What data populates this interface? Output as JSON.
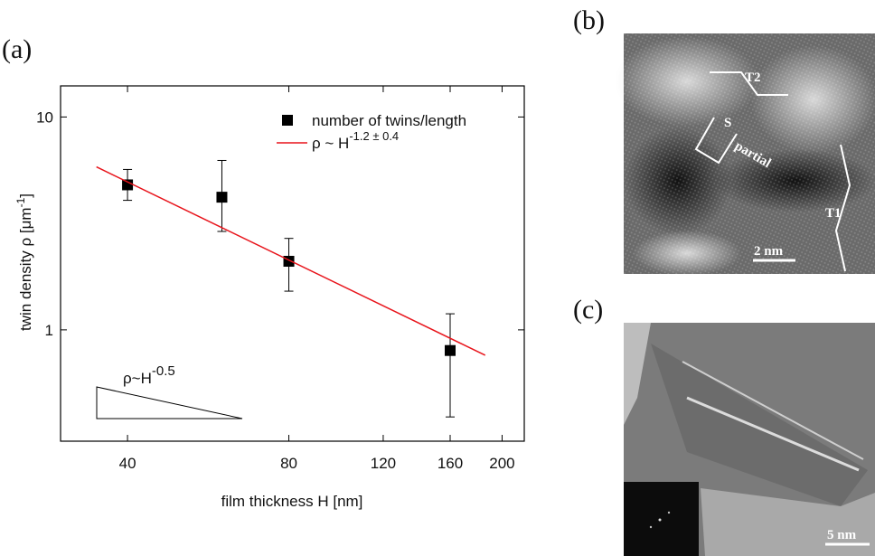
{
  "chart_data": {
    "type": "scatter",
    "panel_label": "(a)",
    "xlabel": "film thickness H [nm]",
    "ylabel": {
      "text": "twin density ρ [μm",
      "sup": "-1",
      "end": "]"
    },
    "xscale": "log",
    "yscale": "log",
    "xlim": [
      30,
      220
    ],
    "ylim": [
      0.3,
      14
    ],
    "xticks": [
      40,
      80,
      120,
      160,
      200
    ],
    "yticks": [
      1,
      10
    ],
    "series": [
      {
        "name": "number of twins/length",
        "type": "scatter",
        "color": "#000000",
        "x": [
          40,
          60,
          80,
          160
        ],
        "values": [
          4.8,
          4.2,
          2.1,
          0.8
        ],
        "error_low": [
          4.06,
          2.9,
          1.52,
          0.39
        ],
        "error_high": [
          5.67,
          6.25,
          2.69,
          1.19
        ]
      },
      {
        "name": "ρ ~ H",
        "name_sup": "-1.2 ± 0.4",
        "type": "line",
        "color": "#e8141b",
        "x": [
          35,
          186
        ],
        "values": [
          5.83,
          0.76
        ]
      }
    ],
    "annotation": {
      "text": "ρ~H",
      "sup": "-0.5"
    }
  },
  "images": [
    {
      "label": "(b)",
      "annotations": [
        "T2",
        "S",
        "partial",
        "T1"
      ],
      "scale": "2 nm"
    },
    {
      "label": "(c)",
      "scale": "5 nm"
    }
  ]
}
